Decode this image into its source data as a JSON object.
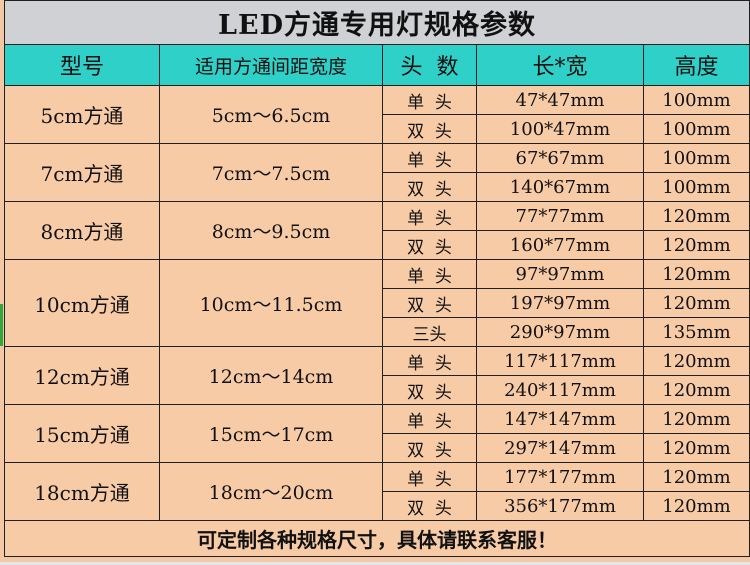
{
  "title": "LED方通专用灯规格参数",
  "headers": [
    "型号",
    "适用方通间距宽度",
    "头  数",
    "长*宽",
    "高度"
  ],
  "rows": [
    {
      "model": "5cm方通",
      "range": "5cm～6.5cm",
      "variants": [
        {
          "heads": "单  头",
          "size": "47*47mm",
          "height": "100mm"
        },
        {
          "heads": "双  头",
          "size": "100*47mm",
          "height": "100mm"
        }
      ]
    },
    {
      "model": "7cm方通",
      "range": "7cm～7.5cm",
      "variants": [
        {
          "heads": "单  头",
          "size": "67*67mm",
          "height": "100mm"
        },
        {
          "heads": "双  头",
          "size": "140*67mm",
          "height": "100mm"
        }
      ]
    },
    {
      "model": "8cm方通",
      "range": "8cm～9.5cm",
      "variants": [
        {
          "heads": "单  头",
          "size": "77*77mm",
          "height": "120mm"
        },
        {
          "heads": "双  头",
          "size": "160*77mm",
          "height": "120mm"
        }
      ]
    },
    {
      "model": "10cm方通",
      "range": "10cm～11.5cm",
      "variants": [
        {
          "heads": "单  头",
          "size": "97*97mm",
          "height": "120mm"
        },
        {
          "heads": "双  头",
          "size": "197*97mm",
          "height": "120mm"
        },
        {
          "heads": "三头",
          "size": "290*97mm",
          "height": "135mm"
        }
      ]
    },
    {
      "model": "12cm方通",
      "range": "12cm～14cm",
      "variants": [
        {
          "heads": "单  头",
          "size": "117*117mm",
          "height": "120mm"
        },
        {
          "heads": "双  头",
          "size": "240*117mm",
          "height": "120mm"
        }
      ]
    },
    {
      "model": "15cm方通",
      "range": "15cm～17cm",
      "variants": [
        {
          "heads": "单  头",
          "size": "147*147mm",
          "height": "120mm"
        },
        {
          "heads": "双  头",
          "size": "297*147mm",
          "height": "120mm"
        }
      ]
    },
    {
      "model": "18cm方通",
      "range": "18cm～20cm",
      "variants": [
        {
          "heads": "单  头",
          "size": "177*177mm",
          "height": "120mm"
        },
        {
          "heads": "双  头",
          "size": "356*177mm",
          "height": "120mm"
        }
      ]
    }
  ],
  "footer": "可定制各种规格尺寸，具体请联系客服！"
}
